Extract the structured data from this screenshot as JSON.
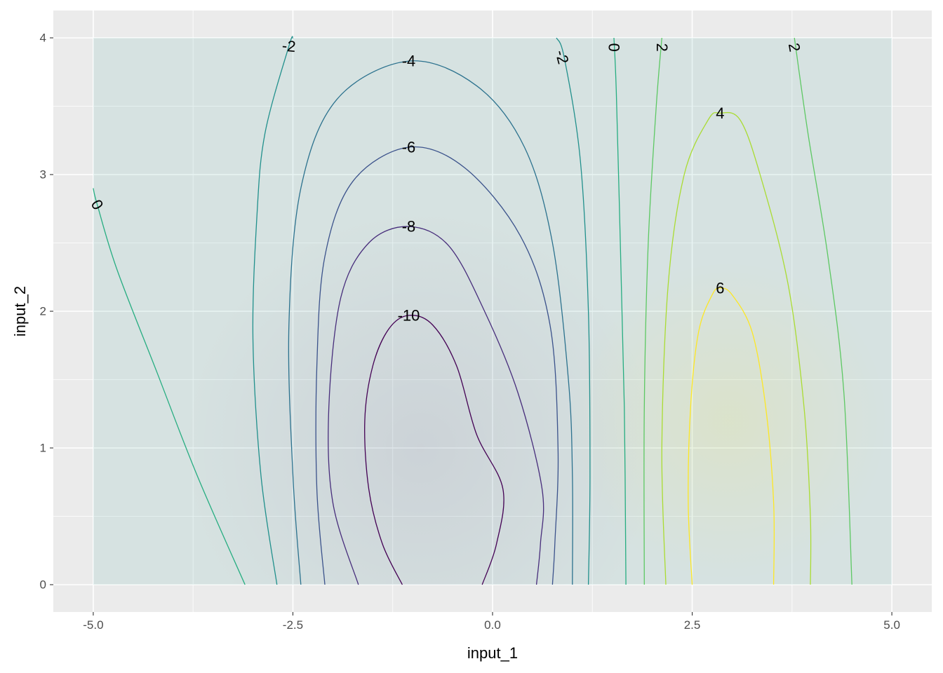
{
  "chart_data": {
    "type": "contour",
    "xlabel": "input_1",
    "ylabel": "input_2",
    "xlim": [
      -5.5,
      5.5
    ],
    "ylim": [
      -0.2,
      4.2
    ],
    "x_ticks": [
      -5.0,
      -2.5,
      0.0,
      2.5,
      5.0
    ],
    "x_tick_labels": [
      "-5.0",
      "-2.5",
      "0.0",
      "2.5",
      "5.0"
    ],
    "y_ticks": [
      0,
      1,
      2,
      3,
      4
    ],
    "y_tick_labels": [
      "0",
      "1",
      "2",
      "3",
      "4"
    ],
    "grid": true,
    "data_extent": {
      "x": [
        -5,
        5
      ],
      "y": [
        0,
        4
      ]
    },
    "levels": [
      -10,
      -8,
      -6,
      -4,
      -2,
      0,
      2,
      4,
      6
    ],
    "level_colors": {
      "-10": "#440154",
      "-8": "#472d7b",
      "-6": "#3b528b",
      "-4": "#2c728e",
      "-2": "#21908c",
      "0": "#27ad81",
      "2": "#5dc863",
      "4": "#aadc32",
      "6": "#fde725"
    },
    "labels": [
      {
        "text": "-10",
        "x": -1.05,
        "y": 1.97
      },
      {
        "text": "-8",
        "x": -1.05,
        "y": 2.62
      },
      {
        "text": "-6",
        "x": -1.05,
        "y": 3.2
      },
      {
        "text": "-4",
        "x": -1.05,
        "y": 3.83
      },
      {
        "text": "-2",
        "x": -2.55,
        "y": 3.94
      },
      {
        "text": "-2",
        "x": 0.87,
        "y": 3.86
      },
      {
        "text": "0",
        "x": -4.95,
        "y": 2.78
      },
      {
        "text": "0",
        "x": 1.52,
        "y": 3.93
      },
      {
        "text": "2",
        "x": 2.12,
        "y": 3.93
      },
      {
        "text": "2",
        "x": 3.78,
        "y": 3.93
      },
      {
        "text": "4",
        "x": 2.85,
        "y": 3.45
      },
      {
        "text": "6",
        "x": 2.85,
        "y": 2.17
      }
    ],
    "contours": [
      {
        "level": -10,
        "points": [
          [
            -1.13,
            0
          ],
          [
            -1.38,
            0.3
          ],
          [
            -1.55,
            0.7
          ],
          [
            -1.6,
            1.2
          ],
          [
            -1.5,
            1.6
          ],
          [
            -1.3,
            1.87
          ],
          [
            -1.05,
            1.97
          ],
          [
            -0.75,
            1.9
          ],
          [
            -0.45,
            1.6
          ],
          [
            -0.2,
            1.1
          ],
          [
            0.13,
            0.7
          ],
          [
            0.05,
            0.3
          ],
          [
            -0.13,
            0
          ]
        ]
      },
      {
        "level": -8,
        "points": [
          [
            -1.68,
            0
          ],
          [
            -2.0,
            0.6
          ],
          [
            -2.05,
            1.3
          ],
          [
            -1.9,
            2.1
          ],
          [
            -1.55,
            2.5
          ],
          [
            -1.05,
            2.62
          ],
          [
            -0.55,
            2.48
          ],
          [
            -0.1,
            2.0
          ],
          [
            0.32,
            1.4
          ],
          [
            0.62,
            0.7
          ],
          [
            0.6,
            0.3
          ],
          [
            0.55,
            0
          ]
        ]
      },
      {
        "level": -6,
        "points": [
          [
            -2.1,
            0
          ],
          [
            -2.2,
            0.7
          ],
          [
            -2.2,
            1.6
          ],
          [
            -2.1,
            2.4
          ],
          [
            -1.75,
            2.95
          ],
          [
            -1.05,
            3.2
          ],
          [
            -0.35,
            3.05
          ],
          [
            0.35,
            2.55
          ],
          [
            0.72,
            1.9
          ],
          [
            0.82,
            1.0
          ],
          [
            0.78,
            0.3
          ],
          [
            0.75,
            0
          ]
        ]
      },
      {
        "level": -4,
        "points": [
          [
            -2.4,
            0
          ],
          [
            -2.5,
            0.8
          ],
          [
            -2.55,
            1.9
          ],
          [
            -2.4,
            2.9
          ],
          [
            -1.95,
            3.55
          ],
          [
            -1.05,
            3.83
          ],
          [
            -0.2,
            3.65
          ],
          [
            0.4,
            3.2
          ],
          [
            0.75,
            2.5
          ],
          [
            0.95,
            1.5
          ],
          [
            1.0,
            0.8
          ],
          [
            1.0,
            0
          ]
        ]
      },
      {
        "level": -2,
        "points": [
          [
            -2.7,
            0
          ],
          [
            -2.9,
            0.8
          ],
          [
            -3.0,
            1.8
          ],
          [
            -2.95,
            2.7
          ],
          [
            -2.85,
            3.3
          ],
          [
            -2.55,
            3.94
          ],
          [
            -2.5,
            4.0
          ]
        ]
      },
      {
        "level": -2,
        "points": [
          [
            0.8,
            4.0
          ],
          [
            0.9,
            3.85
          ],
          [
            1.1,
            3.1
          ],
          [
            1.2,
            2.0
          ],
          [
            1.22,
            0.8
          ],
          [
            1.2,
            0
          ]
        ]
      },
      {
        "level": 0,
        "points": [
          [
            -5.0,
            2.9
          ],
          [
            -4.95,
            2.78
          ],
          [
            -4.7,
            2.3
          ],
          [
            -4.2,
            1.55
          ],
          [
            -3.7,
            0.8
          ],
          [
            -3.1,
            0
          ]
        ]
      },
      {
        "level": 0,
        "points": [
          [
            1.52,
            4.0
          ],
          [
            1.55,
            3.6
          ],
          [
            1.6,
            2.5
          ],
          [
            1.65,
            1.3
          ],
          [
            1.67,
            0
          ]
        ]
      },
      {
        "level": 2,
        "points": [
          [
            2.12,
            4.0
          ],
          [
            2.05,
            3.5
          ],
          [
            1.95,
            2.5
          ],
          [
            1.9,
            1.3
          ],
          [
            1.9,
            0
          ]
        ]
      },
      {
        "level": 2,
        "points": [
          [
            3.78,
            4.0
          ],
          [
            3.95,
            3.3
          ],
          [
            4.2,
            2.4
          ],
          [
            4.4,
            1.4
          ],
          [
            4.5,
            0
          ]
        ]
      },
      {
        "level": 4,
        "points": [
          [
            2.17,
            0
          ],
          [
            2.12,
            1.0
          ],
          [
            2.2,
            2.2
          ],
          [
            2.4,
            3.0
          ],
          [
            2.7,
            3.4
          ],
          [
            2.85,
            3.45
          ],
          [
            3.1,
            3.4
          ],
          [
            3.35,
            3.0
          ],
          [
            3.7,
            2.2
          ],
          [
            3.9,
            1.3
          ],
          [
            3.98,
            0.5
          ],
          [
            3.98,
            0
          ]
        ]
      },
      {
        "level": 6,
        "points": [
          [
            2.5,
            0
          ],
          [
            2.45,
            0.6
          ],
          [
            2.48,
            1.3
          ],
          [
            2.58,
            1.85
          ],
          [
            2.75,
            2.12
          ],
          [
            2.85,
            2.17
          ],
          [
            3.0,
            2.12
          ],
          [
            3.25,
            1.85
          ],
          [
            3.42,
            1.3
          ],
          [
            3.52,
            0.6
          ],
          [
            3.52,
            0
          ]
        ]
      }
    ],
    "fill_centers": [
      {
        "x": -0.9,
        "y": 1.0,
        "color": "#440154",
        "rx": 3.0,
        "ry": 3.0
      },
      {
        "x": 2.95,
        "y": 1.2,
        "color": "#fde725",
        "rx": 2.0,
        "ry": 2.8
      }
    ]
  }
}
